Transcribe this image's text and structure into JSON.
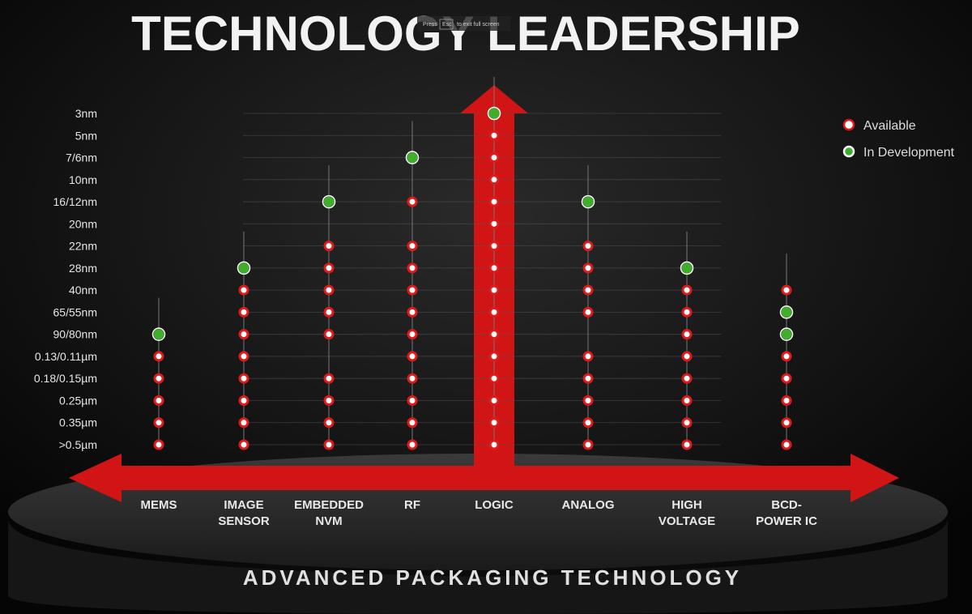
{
  "chart_data": {
    "type": "dot-matrix",
    "title": "TECHNOLOGY LEADERSHIP",
    "footer": "ADVANCED PACKAGING TECHNOLOGY",
    "fullscreen_hint": {
      "press": "Press",
      "key": "Esc",
      "rest": "to exit full screen"
    },
    "categories": [
      "MEMS",
      "IMAGE SENSOR",
      "EMBEDDED NVM",
      "RF",
      "LOGIC",
      "ANALOG",
      "HIGH VOLTAGE",
      "BCD-POWER IC"
    ],
    "y_categories": [
      "3nm",
      "5nm",
      "7/6nm",
      "10nm",
      "16/12nm",
      "20nm",
      "22nm",
      "28nm",
      "40nm",
      "65/55nm",
      "90/80nm",
      "0.13/0.11µm",
      "0.18/0.15µm",
      "0.25µm",
      "0.35µm",
      ">0.5µm"
    ],
    "grid": true,
    "legend": "top-right",
    "series": [
      {
        "name": "Available",
        "color": "#e01a1a",
        "x": [
          "MEMS",
          "MEMS",
          "MEMS",
          "MEMS",
          "MEMS",
          "IMAGE SENSOR",
          "IMAGE SENSOR",
          "IMAGE SENSOR",
          "IMAGE SENSOR",
          "IMAGE SENSOR",
          "IMAGE SENSOR",
          "IMAGE SENSOR",
          "IMAGE SENSOR",
          "EMBEDDED NVM",
          "EMBEDDED NVM",
          "EMBEDDED NVM",
          "EMBEDDED NVM",
          "EMBEDDED NVM",
          "EMBEDDED NVM",
          "EMBEDDED NVM",
          "EMBEDDED NVM",
          "EMBEDDED NVM",
          "RF",
          "RF",
          "RF",
          "RF",
          "RF",
          "RF",
          "RF",
          "RF",
          "RF",
          "RF",
          "RF",
          "LOGIC",
          "LOGIC",
          "LOGIC",
          "LOGIC",
          "LOGIC",
          "LOGIC",
          "LOGIC",
          "LOGIC",
          "LOGIC",
          "LOGIC",
          "LOGIC",
          "LOGIC",
          "LOGIC",
          "LOGIC",
          "LOGIC",
          "ANALOG",
          "ANALOG",
          "ANALOG",
          "ANALOG",
          "ANALOG",
          "ANALOG",
          "ANALOG",
          "ANALOG",
          "ANALOG",
          "HIGH VOLTAGE",
          "HIGH VOLTAGE",
          "HIGH VOLTAGE",
          "HIGH VOLTAGE",
          "HIGH VOLTAGE",
          "HIGH VOLTAGE",
          "HIGH VOLTAGE",
          "HIGH VOLTAGE",
          "BCD-POWER IC",
          "BCD-POWER IC",
          "BCD-POWER IC",
          "BCD-POWER IC",
          "BCD-POWER IC",
          "BCD-POWER IC"
        ],
        "y": [
          "0.13/0.11µm",
          "0.18/0.15µm",
          "0.25µm",
          "0.35µm",
          ">0.5µm",
          "40nm",
          "65/55nm",
          "90/80nm",
          "0.13/0.11µm",
          "0.18/0.15µm",
          "0.25µm",
          "0.35µm",
          ">0.5µm",
          "22nm",
          "28nm",
          "40nm",
          "65/55nm",
          "90/80nm",
          "0.18/0.15µm",
          "0.25µm",
          "0.35µm",
          ">0.5µm",
          "16/12nm",
          "22nm",
          "28nm",
          "40nm",
          "65/55nm",
          "90/80nm",
          "0.13/0.11µm",
          "0.18/0.15µm",
          "0.25µm",
          "0.35µm",
          ">0.5µm",
          "5nm",
          "7/6nm",
          "10nm",
          "16/12nm",
          "20nm",
          "22nm",
          "28nm",
          "40nm",
          "65/55nm",
          "90/80nm",
          "0.13/0.11µm",
          "0.18/0.15µm",
          "0.25µm",
          "0.35µm",
          ">0.5µm",
          "22nm",
          "28nm",
          "40nm",
          "65/55nm",
          "0.13/0.11µm",
          "0.18/0.15µm",
          "0.25µm",
          "0.35µm",
          ">0.5µm",
          "40nm",
          "65/55nm",
          "90/80nm",
          "0.13/0.11µm",
          "0.18/0.15µm",
          "0.25µm",
          "0.35µm",
          ">0.5µm",
          "40nm",
          "0.13/0.11µm",
          "0.18/0.15µm",
          "0.25µm",
          "0.35µm",
          ">0.5µm"
        ]
      },
      {
        "name": "In Development",
        "color": "#3fae2a",
        "x": [
          "MEMS",
          "IMAGE SENSOR",
          "EMBEDDED NVM",
          "RF",
          "LOGIC",
          "ANALOG",
          "HIGH VOLTAGE",
          "BCD-POWER IC",
          "BCD-POWER IC"
        ],
        "y": [
          "90/80nm",
          "28nm",
          "16/12nm",
          "7/6nm",
          "3nm",
          "16/12nm",
          "28nm",
          "65/55nm",
          "90/80nm"
        ]
      }
    ]
  }
}
